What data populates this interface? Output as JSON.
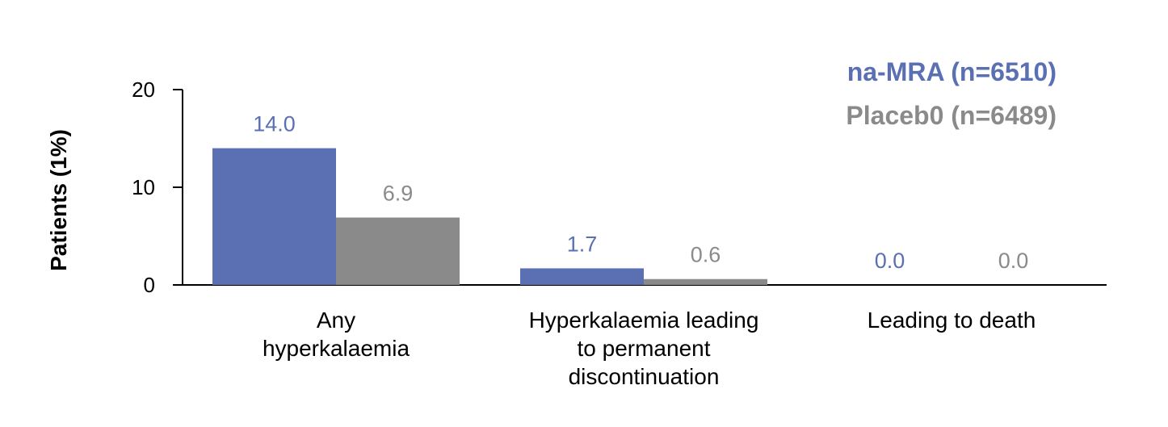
{
  "chart_data": {
    "type": "bar",
    "ylabel": "Patients (1%)",
    "ylim": [
      0,
      20
    ],
    "yticks": [
      "0",
      "10",
      "20"
    ],
    "categories": [
      [
        "Any",
        "hyperkalaemia"
      ],
      [
        "Hyperkalaemia leading",
        "to permanent",
        "discontinuation"
      ],
      [
        "Leading to death"
      ]
    ],
    "series": [
      {
        "name": "na-MRA (n=6510)",
        "color": "#5b70b3",
        "values": [
          14.0,
          1.7,
          0.0
        ],
        "labels": [
          "14.0",
          "1.7",
          "0.0"
        ]
      },
      {
        "name": "Placeb0 (n=6489)",
        "color": "#8a8a8a",
        "values": [
          6.9,
          0.6,
          0.0
        ],
        "labels": [
          "6.9",
          "0.6",
          "0.0"
        ]
      }
    ],
    "legend_position": "top-right",
    "grid": false
  }
}
